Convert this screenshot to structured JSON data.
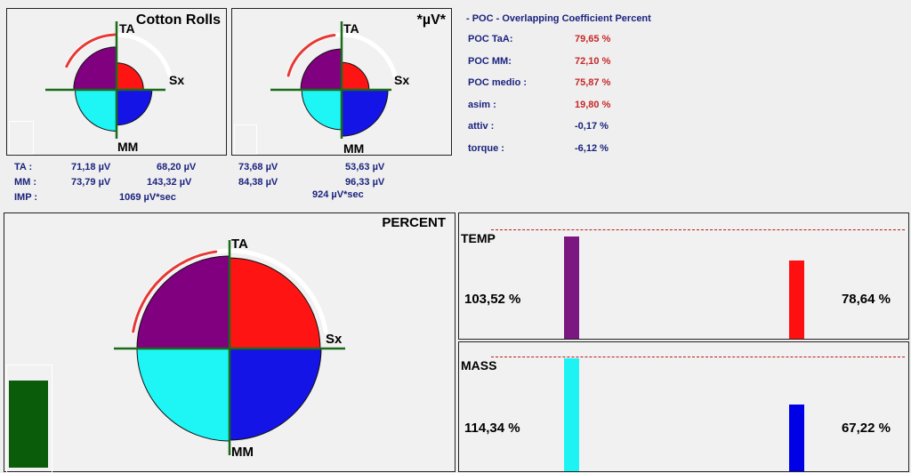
{
  "panels": {
    "cotton": {
      "title": "Cotton Rolls",
      "labels": {
        "top": "TA",
        "right": "Sx",
        "bottom": "MM"
      },
      "slices": {
        "ta_sx": 0.54,
        "sx_mm": 0.71,
        "mm_dx": 0.83,
        "dx_ta": 0.86
      },
      "arc": {
        "from_deg": 205,
        "to_deg": 345
      }
    },
    "uv": {
      "title": "*µV*",
      "labels": {
        "top": "TA",
        "right": "Sx",
        "bottom": "MM"
      },
      "slices": {
        "ta_sx": 0.55,
        "sx_mm": 0.93,
        "mm_dx": 0.8,
        "dx_ta": 0.82
      },
      "arc": {
        "from_deg": 195,
        "to_deg": 345
      }
    },
    "percent": {
      "title": "PERCENT",
      "labels": {
        "top": "TA",
        "right": "Sx",
        "bottom": "MM"
      },
      "slices": {
        "ta_sx": 0.98,
        "sx_mm": 0.99,
        "mm_dx": 1.0,
        "dx_ta": 1.0
      },
      "arc": {
        "from_deg": 190,
        "to_deg": 350
      }
    }
  },
  "values_left": {
    "ta_label": "TA :",
    "mm_label": "MM :",
    "imp_label": "IMP :",
    "ta_1": "71,18 µV",
    "ta_2": "68,20 µV",
    "mm_1": "73,79 µV",
    "mm_2": "143,32 µV",
    "imp": "1069 µV*sec"
  },
  "values_right": {
    "ta_1": "73,68 µV",
    "ta_2": "53,63 µV",
    "mm_1": "84,38 µV",
    "mm_2": "96,33 µV",
    "imp": "924 µV*sec"
  },
  "poc": {
    "header": "- POC - Overlapping Coefficient Percent",
    "rows": [
      {
        "label": "POC TaA:",
        "value": "79,65 %",
        "color": "#c62828"
      },
      {
        "label": "POC MM:",
        "value": "72,10 %",
        "color": "#c62828"
      },
      {
        "label": "POC medio :",
        "value": "75,87 %",
        "color": "#c62828"
      },
      {
        "label": "asim :",
        "value": "19,80 %",
        "color": "#c62828"
      },
      {
        "label": "attiv :",
        "value": "-0,17 %",
        "color": "#1a237e"
      },
      {
        "label": "torque :",
        "value": "-6,12 %",
        "color": "#1a237e"
      }
    ]
  },
  "temp": {
    "label": "TEMP",
    "left_value": "103,52 %",
    "right_value": "78,64 %",
    "left_level": 1.0352,
    "right_level": 0.7864,
    "left_color": "#7b1780",
    "right_color": "#ff1010"
  },
  "mass": {
    "label": "MASS",
    "left_value": "114,34 %",
    "right_value": "67,22 %",
    "left_level": 1.1434,
    "right_level": 0.6722,
    "left_color": "#1ef3f3",
    "right_color": "#0000e6"
  },
  "colors": {
    "purple": "#800080",
    "red": "#ff1414",
    "blue": "#1414e6",
    "cyan": "#1ef5f5",
    "axis": "#1a6b1a",
    "arc": "#e53935",
    "green_bar": "#0a5c0a"
  },
  "green_bar_level": 0.98
}
